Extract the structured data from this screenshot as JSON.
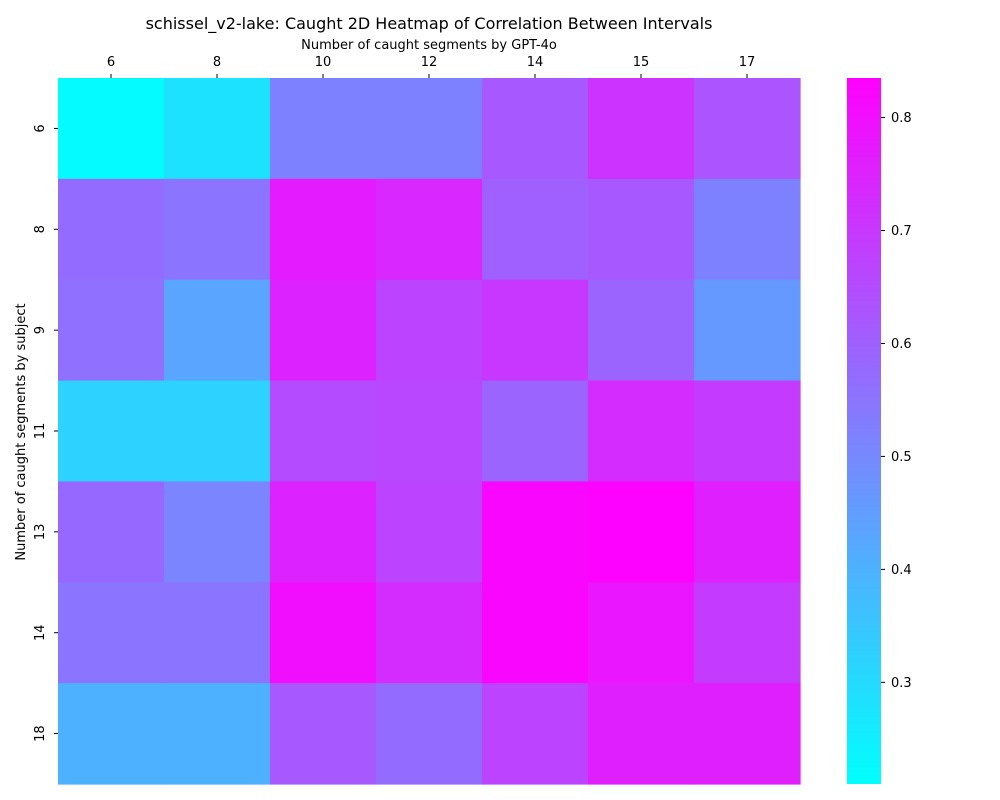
{
  "chart_data": {
    "type": "heatmap",
    "title": "schissel_v2-lake: Caught 2D Heatmap of Correlation Between Intervals",
    "xlabel": "Number of caught segments by GPT-4o",
    "ylabel": "Number of caught segments by subject",
    "x_categories": [
      "6",
      "8",
      "10",
      "12",
      "14",
      "15",
      "17"
    ],
    "y_categories": [
      "6",
      "8",
      "9",
      "11",
      "13",
      "14",
      "18"
    ],
    "values": [
      [
        0.22,
        0.28,
        0.52,
        0.52,
        0.62,
        0.71,
        0.63
      ],
      [
        0.57,
        0.55,
        0.77,
        0.74,
        0.6,
        0.62,
        0.52
      ],
      [
        0.56,
        0.43,
        0.75,
        0.67,
        0.7,
        0.59,
        0.46
      ],
      [
        0.32,
        0.32,
        0.65,
        0.66,
        0.59,
        0.73,
        0.69
      ],
      [
        0.58,
        0.51,
        0.75,
        0.67,
        0.82,
        0.83,
        0.76
      ],
      [
        0.55,
        0.55,
        0.8,
        0.73,
        0.82,
        0.78,
        0.69
      ],
      [
        0.4,
        0.4,
        0.62,
        0.57,
        0.67,
        0.76,
        0.76
      ]
    ],
    "colorbar": {
      "min": 0.21,
      "max": 0.835,
      "ticks": [
        0.3,
        0.4,
        0.5,
        0.6,
        0.7,
        0.8
      ],
      "tick_labels": [
        "0.3",
        "0.4",
        "0.5",
        "0.6",
        "0.7",
        "0.8"
      ]
    },
    "colormap": "cool",
    "colormap_start": "#00ffff",
    "colormap_end": "#ff00ff",
    "x_axis_position": "top",
    "grid": false
  }
}
